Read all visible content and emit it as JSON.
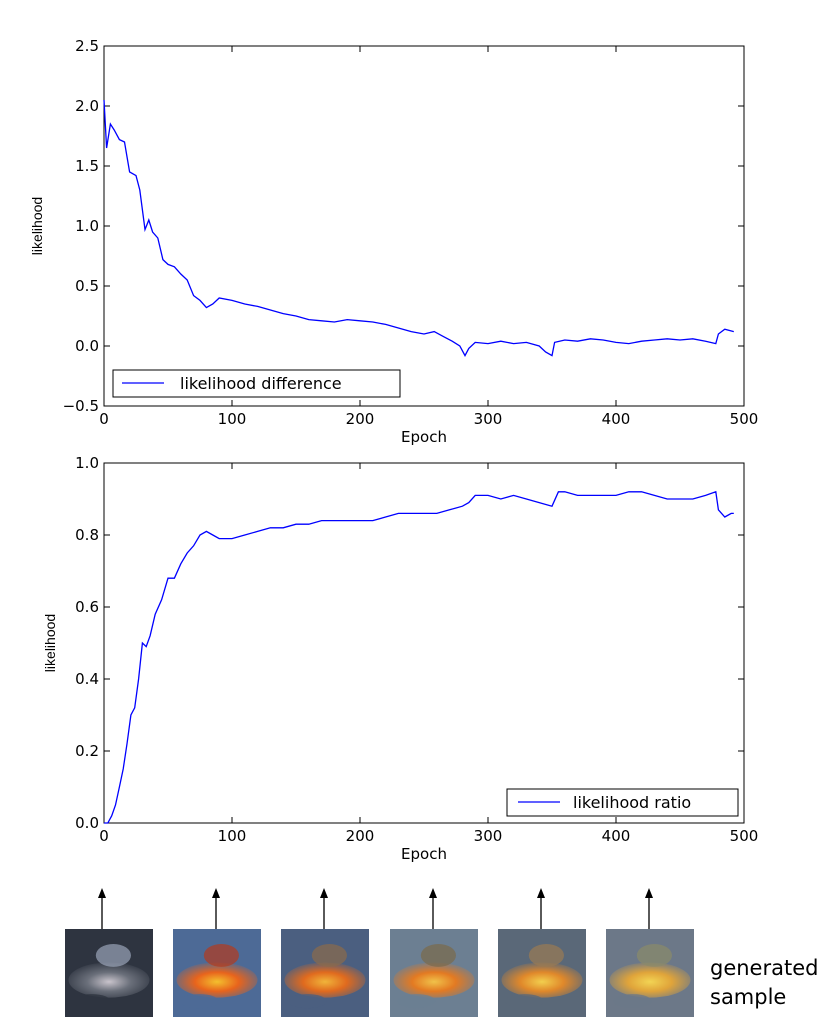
{
  "chart_data": [
    {
      "type": "line",
      "xlabel": "Epoch",
      "ylabel": "likelihood",
      "xlim": [
        0,
        500
      ],
      "ylim": [
        -0.5,
        2.5
      ],
      "xticks": [
        0,
        100,
        200,
        300,
        400,
        500
      ],
      "yticks": [
        -0.5,
        0.0,
        0.5,
        1.0,
        1.5,
        2.0,
        2.5
      ],
      "ytick_labels": [
        "−0.5",
        "0.0",
        "0.5",
        "1.0",
        "1.5",
        "2.0",
        "2.5"
      ],
      "grid": false,
      "legend": "bottom-left",
      "color": "#0000ff",
      "series": [
        {
          "name": "likelihood difference",
          "x": [
            0,
            2,
            5,
            8,
            12,
            16,
            20,
            25,
            28,
            32,
            35,
            38,
            42,
            46,
            50,
            55,
            60,
            65,
            70,
            75,
            80,
            85,
            90,
            100,
            110,
            120,
            130,
            140,
            150,
            160,
            170,
            180,
            190,
            200,
            210,
            220,
            230,
            240,
            250,
            258,
            265,
            272,
            278,
            282,
            285,
            290,
            300,
            310,
            320,
            330,
            340,
            345,
            350,
            352,
            360,
            370,
            380,
            390,
            400,
            410,
            420,
            430,
            440,
            450,
            460,
            470,
            478,
            480,
            485,
            492
          ],
          "y": [
            2.05,
            1.65,
            1.85,
            1.8,
            1.72,
            1.7,
            1.45,
            1.42,
            1.3,
            0.97,
            1.05,
            0.95,
            0.9,
            0.72,
            0.68,
            0.66,
            0.6,
            0.55,
            0.42,
            0.38,
            0.32,
            0.35,
            0.4,
            0.38,
            0.35,
            0.33,
            0.3,
            0.27,
            0.25,
            0.22,
            0.21,
            0.2,
            0.22,
            0.21,
            0.2,
            0.18,
            0.15,
            0.12,
            0.1,
            0.12,
            0.08,
            0.04,
            0.0,
            -0.08,
            -0.02,
            0.03,
            0.02,
            0.04,
            0.02,
            0.03,
            0.0,
            -0.05,
            -0.08,
            0.03,
            0.05,
            0.04,
            0.06,
            0.05,
            0.03,
            0.02,
            0.04,
            0.05,
            0.06,
            0.05,
            0.06,
            0.04,
            0.02,
            0.1,
            0.14,
            0.12
          ]
        }
      ]
    },
    {
      "type": "line",
      "xlabel": "Epoch",
      "ylabel": "likelihood",
      "xlim": [
        0,
        500
      ],
      "ylim": [
        0.0,
        1.0
      ],
      "xticks": [
        0,
        100,
        200,
        300,
        400,
        500
      ],
      "yticks": [
        0.0,
        0.2,
        0.4,
        0.6,
        0.8,
        1.0
      ],
      "ytick_labels": [
        "0.0",
        "0.2",
        "0.4",
        "0.6",
        "0.8",
        "1.0"
      ],
      "grid": false,
      "legend": "bottom-right",
      "color": "#0000ff",
      "series": [
        {
          "name": "likelihood ratio",
          "x": [
            0,
            3,
            6,
            9,
            12,
            15,
            18,
            21,
            24,
            27,
            30,
            33,
            36,
            40,
            45,
            50,
            55,
            60,
            65,
            70,
            75,
            80,
            85,
            90,
            100,
            110,
            120,
            130,
            140,
            150,
            160,
            170,
            180,
            190,
            200,
            210,
            220,
            230,
            240,
            250,
            260,
            270,
            280,
            285,
            290,
            300,
            310,
            320,
            330,
            340,
            350,
            355,
            360,
            370,
            380,
            390,
            400,
            410,
            420,
            430,
            440,
            450,
            460,
            470,
            478,
            480,
            485,
            490,
            492
          ],
          "y": [
            0.0,
            0.0,
            0.02,
            0.05,
            0.1,
            0.15,
            0.22,
            0.3,
            0.32,
            0.4,
            0.5,
            0.49,
            0.52,
            0.58,
            0.62,
            0.68,
            0.68,
            0.72,
            0.75,
            0.77,
            0.8,
            0.81,
            0.8,
            0.79,
            0.79,
            0.8,
            0.81,
            0.82,
            0.82,
            0.83,
            0.83,
            0.84,
            0.84,
            0.84,
            0.84,
            0.84,
            0.85,
            0.86,
            0.86,
            0.86,
            0.86,
            0.87,
            0.88,
            0.89,
            0.91,
            0.91,
            0.9,
            0.91,
            0.9,
            0.89,
            0.88,
            0.92,
            0.92,
            0.91,
            0.91,
            0.91,
            0.91,
            0.92,
            0.92,
            0.91,
            0.9,
            0.9,
            0.9,
            0.91,
            0.92,
            0.87,
            0.85,
            0.86,
            0.86
          ]
        }
      ]
    }
  ],
  "samples": {
    "count": 6,
    "caption_line1": "generated",
    "caption_line2": "sample",
    "palettes": [
      {
        "bg": "#2e3440",
        "mid": "#6a6f7a",
        "hi": "#c9c4cc",
        "accent": "#9aa4b8"
      },
      {
        "bg": "#4d6a96",
        "mid": "#e8641c",
        "hi": "#f3c02e",
        "accent": "#b43a1c"
      },
      {
        "bg": "#4b5f80",
        "mid": "#e06a1e",
        "hi": "#f0b43a",
        "accent": "#8c6b4a"
      },
      {
        "bg": "#6c7f92",
        "mid": "#e37a22",
        "hi": "#f0c24a",
        "accent": "#7a6a4a"
      },
      {
        "bg": "#5a6878",
        "mid": "#e0882a",
        "hi": "#f2cf4e",
        "accent": "#9a7a52"
      },
      {
        "bg": "#6c7888",
        "mid": "#e0a43a",
        "hi": "#f2d454",
        "accent": "#8a8a6a"
      }
    ]
  }
}
